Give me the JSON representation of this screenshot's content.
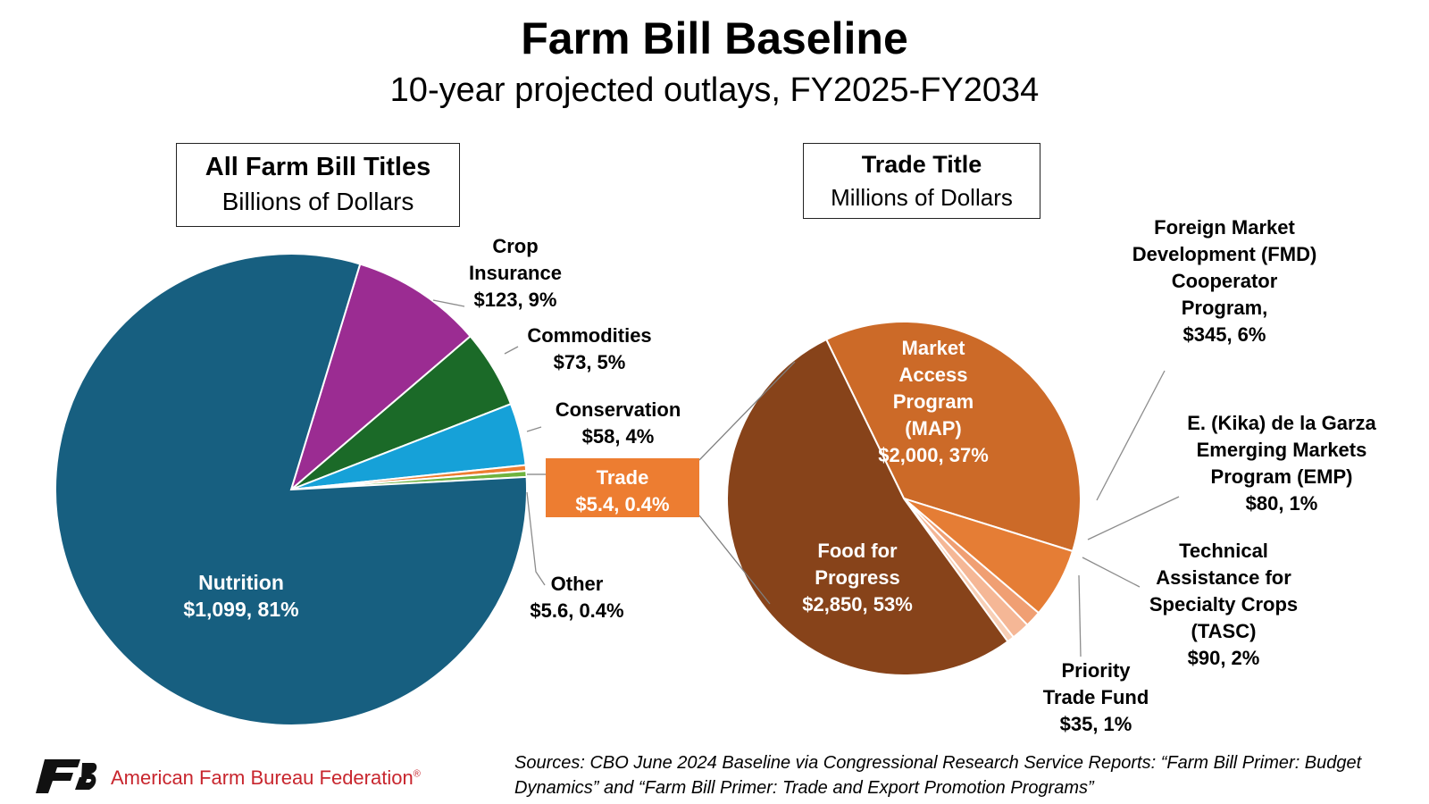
{
  "title": "Farm Bill Baseline",
  "subtitle": "10-year projected outlays, FY2025-FY2034",
  "chart_data": [
    {
      "type": "pie",
      "title": "All Farm Bill Titles",
      "subtitle": "Billions of Dollars",
      "slices": [
        {
          "name": "Crop Insurance",
          "value": 123,
          "pct": 9,
          "label_lines": [
            "Crop",
            "Insurance",
            "$123, 9%"
          ],
          "color": "#9b2c92"
        },
        {
          "name": "Commodities",
          "value": 73,
          "pct": 5,
          "label_lines": [
            "Commodities",
            "$73, 5%"
          ],
          "color": "#1b6a28"
        },
        {
          "name": "Conservation",
          "value": 58,
          "pct": 4,
          "label_lines": [
            "Conservation",
            "$58, 4%"
          ],
          "color": "#16a1d8"
        },
        {
          "name": "Trade",
          "value": 5.4,
          "pct": 0.4,
          "label_lines": [
            "Trade",
            "$5.4, 0.4%"
          ],
          "color": "#ed7d31"
        },
        {
          "name": "Other",
          "value": 5.6,
          "pct": 0.4,
          "label_lines": [
            "Other",
            "$5.6, 0.4%"
          ],
          "color": "#6fb33f"
        },
        {
          "name": "Nutrition",
          "value": 1099,
          "pct": 81,
          "label_lines": [
            "Nutrition",
            "$1,099, 81%"
          ],
          "color": "#175f80"
        }
      ]
    },
    {
      "type": "pie",
      "title": "Trade Title",
      "subtitle": "Millions of Dollars",
      "slices": [
        {
          "name": "Market Access Program (MAP)",
          "value": 2000,
          "pct": 37,
          "label_lines": [
            "Market",
            "Access",
            "Program",
            "(MAP)",
            "$2,000, 37%"
          ],
          "color": "#cc6a28"
        },
        {
          "name": "Foreign Market Development (FMD) Cooperator Program",
          "value": 345,
          "pct": 6,
          "label_lines": [
            "Foreign Market",
            "Development (FMD)",
            "Cooperator",
            "Program,",
            "$345, 6%"
          ],
          "color": "#e57d35"
        },
        {
          "name": "E. (Kika) de la Garza Emerging Markets Program (EMP)",
          "value": 80,
          "pct": 1,
          "label_lines": [
            "E. (Kika) de la Garza",
            "Emerging Markets",
            "Program (EMP)",
            "$80, 1%"
          ],
          "color": "#f09f73"
        },
        {
          "name": "Technical Assistance for Specialty Crops (TASC)",
          "value": 90,
          "pct": 2,
          "label_lines": [
            "Technical",
            "Assistance for",
            "Specialty Crops",
            "(TASC)",
            "$90, 2%"
          ],
          "color": "#f5b796"
        },
        {
          "name": "Priority Trade Fund",
          "value": 35,
          "pct": 1,
          "label_lines": [
            "Priority",
            "Trade Fund",
            "$35, 1%"
          ],
          "color": "#f8cfb6"
        },
        {
          "name": "Food for Progress",
          "value": 2850,
          "pct": 53,
          "label_lines": [
            "Food for",
            "Progress",
            "$2,850, 53%"
          ],
          "color": "#87431a"
        }
      ]
    }
  ],
  "footer": {
    "organization": "American Farm Bureau Federation",
    "registered_mark": "®",
    "sources_line1": "Sources: CBO June 2024 Baseline via Congressional Research Service Reports: “Farm Bill Primer: Budget",
    "sources_line2": "Dynamics” and “Farm Bill Primer: Trade and Export Promotion Programs”"
  },
  "logo_color": "#111111"
}
